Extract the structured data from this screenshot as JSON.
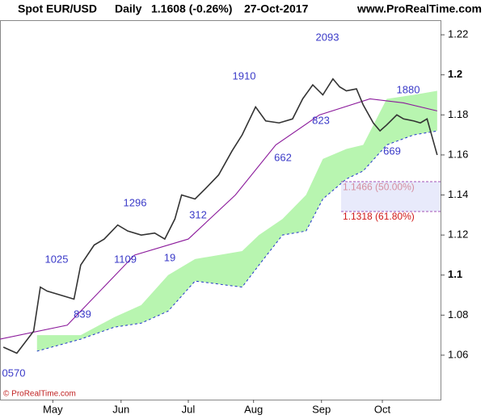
{
  "chart_data": {
    "type": "line",
    "title": "Spot EUR/USD",
    "period": "Daily",
    "last_price": "1.1608 (-0.26%)",
    "date": "27-Oct-2017",
    "site": "www.ProRealTime.com",
    "copyright": "© ProRealTime.com",
    "xlim": [
      0,
      131
    ],
    "xticks": [
      {
        "value": 15.7,
        "label": "May"
      },
      {
        "value": 36,
        "label": "Jun"
      },
      {
        "value": 56,
        "label": "Jul"
      },
      {
        "value": 75.4,
        "label": "Aug"
      },
      {
        "value": 95.6,
        "label": "Sep"
      },
      {
        "value": 113.7,
        "label": "Oct"
      }
    ],
    "ylim": [
      1.0378,
      1.2273
    ],
    "yticks": [
      1.06,
      1.08,
      1.1,
      1.12,
      1.14,
      1.16,
      1.18,
      1.2,
      1.22
    ],
    "series": [
      {
        "name": "Price",
        "color": "#333333",
        "x": [
          1,
          5,
          10,
          12,
          14,
          18,
          22,
          24,
          28,
          31,
          35,
          38,
          42,
          46,
          49,
          52,
          54,
          58,
          61,
          65,
          69,
          72,
          76,
          79,
          83,
          87,
          90,
          93,
          96,
          99,
          101,
          103,
          106,
          108,
          111,
          113,
          115,
          118,
          120,
          123,
          125,
          127,
          130
        ],
        "values": [
          1.064,
          1.061,
          1.072,
          1.094,
          1.092,
          1.09,
          1.088,
          1.105,
          1.115,
          1.118,
          1.125,
          1.122,
          1.12,
          1.121,
          1.118,
          1.128,
          1.14,
          1.138,
          1.143,
          1.15,
          1.162,
          1.17,
          1.184,
          1.177,
          1.176,
          1.178,
          1.188,
          1.195,
          1.19,
          1.198,
          1.194,
          1.192,
          1.193,
          1.185,
          1.176,
          1.172,
          1.175,
          1.18,
          1.178,
          1.177,
          1.176,
          1.178,
          1.16
        ]
      },
      {
        "name": "Kijun",
        "color": "#8b1a9b",
        "x": [
          0,
          20,
          40,
          56,
          70,
          82,
          95,
          110,
          120,
          130
        ],
        "values": [
          1.068,
          1.075,
          1.11,
          1.118,
          1.14,
          1.165,
          1.18,
          1.188,
          1.186,
          1.182
        ]
      }
    ],
    "cloud": {
      "color": "#b8f5b0",
      "x": [
        11,
        24,
        34,
        42,
        50,
        58,
        72,
        77,
        84,
        91,
        96,
        103,
        108,
        115,
        123,
        130
      ],
      "upper": [
        1.07,
        1.07,
        1.079,
        1.085,
        1.1,
        1.108,
        1.112,
        1.12,
        1.128,
        1.14,
        1.158,
        1.163,
        1.165,
        1.188,
        1.19,
        1.192
      ],
      "lower": [
        1.062,
        1.068,
        1.074,
        1.076,
        1.082,
        1.097,
        1.094,
        1.105,
        1.12,
        1.122,
        1.138,
        1.148,
        1.152,
        1.165,
        1.17,
        1.172
      ]
    },
    "fib_levels": [
      {
        "value": 1.1466,
        "label": "1.1466 (50.00%)"
      },
      {
        "value": 1.1318,
        "label": "1.1318 (61.80%)"
      }
    ],
    "annotations": [
      "2093",
      "1910",
      "823",
      "662",
      "1880",
      "669",
      "1296",
      "312",
      "1109",
      "19",
      "1025",
      "839",
      "0570"
    ]
  }
}
